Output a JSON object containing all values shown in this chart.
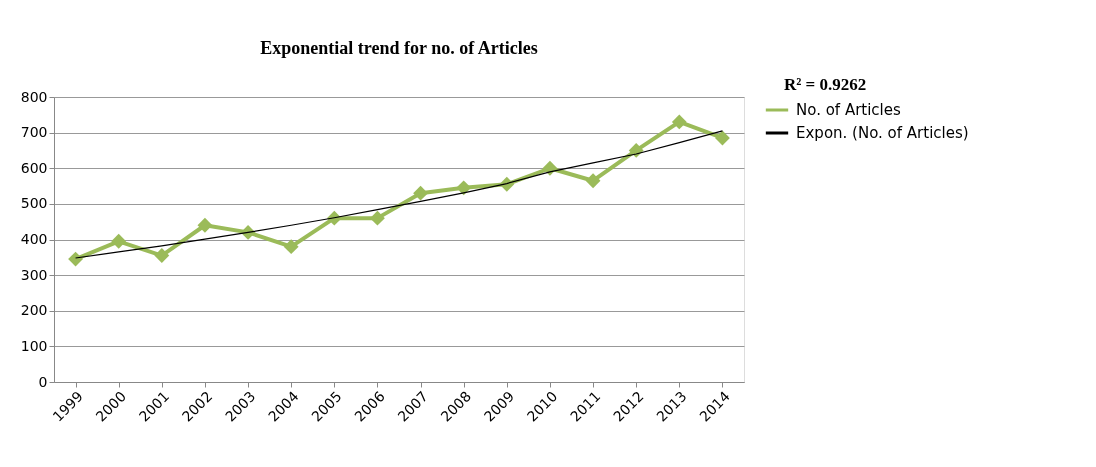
{
  "chart_data": {
    "type": "line",
    "title": "Exponential trend  for no. of Articles",
    "categories": [
      "1999",
      "2000",
      "2001",
      "2002",
      "2003",
      "2004",
      "2005",
      "2006",
      "2007",
      "2008",
      "2009",
      "2010",
      "2011",
      "2012",
      "2013",
      "2014"
    ],
    "series": [
      {
        "name": "No. of Articles",
        "color": "#9bbb59",
        "marker": "diamond",
        "values": [
          345,
          395,
          355,
          440,
          420,
          380,
          460,
          460,
          530,
          545,
          555,
          600,
          565,
          650,
          730,
          685
        ]
      },
      {
        "name": "Expon. (No. of Articles)",
        "color": "#000000",
        "marker": "none",
        "values": [
          348,
          365,
          382,
          401,
          420,
          440,
          461,
          484,
          507,
          531,
          557,
          590,
          615,
          640,
          672,
          705
        ]
      }
    ],
    "ylim": [
      0,
      800
    ],
    "yticks": [
      0,
      100,
      200,
      300,
      400,
      500,
      600,
      700,
      800
    ],
    "grid": "y",
    "legend": "right",
    "line_style": "solid",
    "annotations": [
      "R² = 0.9262"
    ]
  }
}
